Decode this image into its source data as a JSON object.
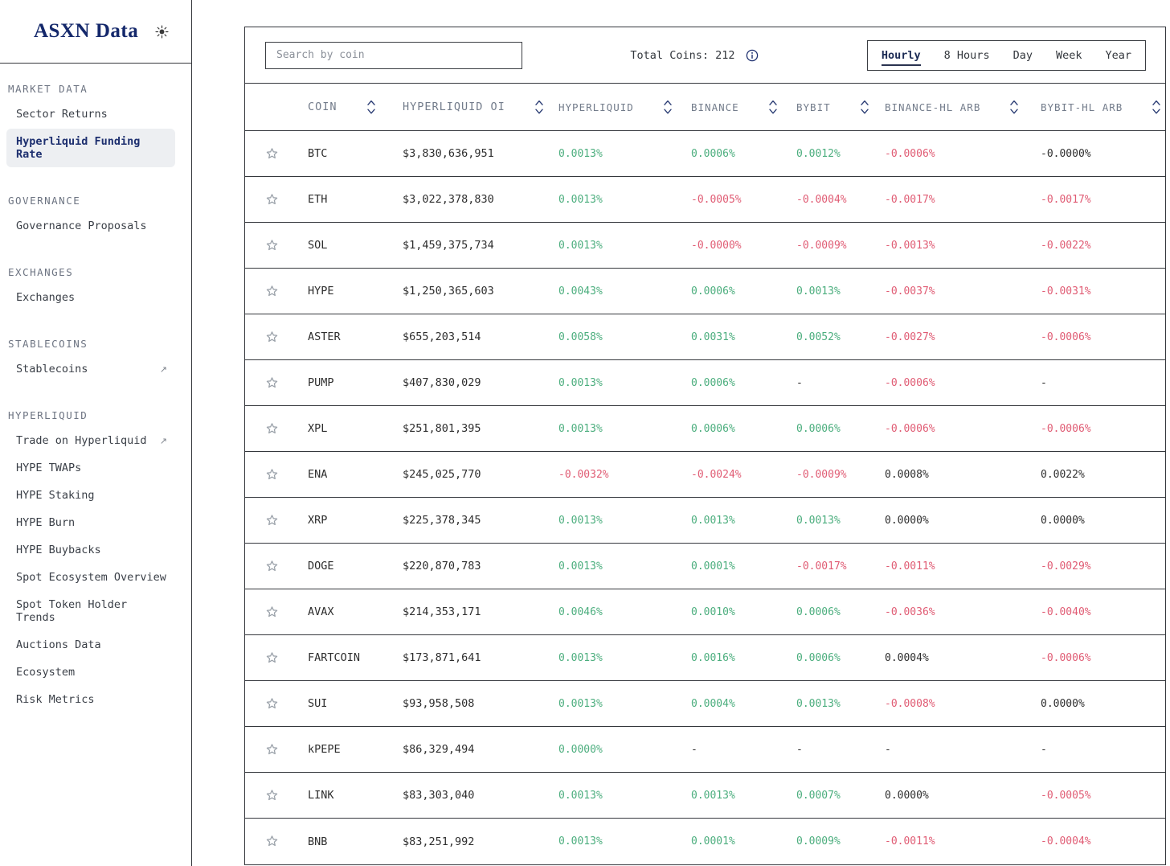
{
  "sidebar": {
    "logo": "ASXN Data",
    "sections": [
      {
        "title": "MARKET DATA",
        "items": [
          {
            "label": "Sector Returns"
          },
          {
            "label": "Hyperliquid Funding Rate",
            "active": true
          }
        ]
      },
      {
        "title": "GOVERNANCE",
        "items": [
          {
            "label": "Governance Proposals"
          }
        ]
      },
      {
        "title": "EXCHANGES",
        "items": [
          {
            "label": "Exchanges"
          }
        ]
      },
      {
        "title": "STABLECOINS",
        "items": [
          {
            "label": "Stablecoins",
            "external": true
          }
        ]
      },
      {
        "title": "HYPERLIQUID",
        "items": [
          {
            "label": "Trade on Hyperliquid",
            "external": true
          },
          {
            "label": "HYPE TWAPs"
          },
          {
            "label": "HYPE Staking"
          },
          {
            "label": "HYPE Burn"
          },
          {
            "label": "HYPE Buybacks"
          },
          {
            "label": "Spot Ecosystem Overview"
          },
          {
            "label": "Spot Token Holder Trends"
          },
          {
            "label": "Auctions Data"
          },
          {
            "label": "Ecosystem"
          },
          {
            "label": "Risk Metrics"
          }
        ]
      }
    ]
  },
  "toolbar": {
    "search_placeholder": "Search by coin",
    "total_coins_label": "Total Coins: 212",
    "periods": [
      "Hourly",
      "8 Hours",
      "Day",
      "Week",
      "Year"
    ],
    "active_period": "Hourly"
  },
  "table": {
    "columns": [
      "COIN",
      "HYPERLIQUID OI",
      "HYPERLIQUID",
      "BINANCE",
      "BYBIT",
      "BINANCE-HL ARB",
      "BYBIT-HL ARB"
    ],
    "rows": [
      {
        "coin": "BTC",
        "oi": "$3,830,636,951",
        "rates": [
          {
            "value": "0.0013%",
            "tone": "positive"
          },
          {
            "value": "0.0006%",
            "tone": "positive"
          },
          {
            "value": "0.0012%",
            "tone": "positive"
          },
          {
            "value": "-0.0006%",
            "tone": "negative"
          },
          {
            "value": "-0.0000%",
            "tone": "neutral"
          }
        ]
      },
      {
        "coin": "ETH",
        "oi": "$3,022,378,830",
        "rates": [
          {
            "value": "0.0013%",
            "tone": "positive"
          },
          {
            "value": "-0.0005%",
            "tone": "negative"
          },
          {
            "value": "-0.0004%",
            "tone": "negative"
          },
          {
            "value": "-0.0017%",
            "tone": "negative"
          },
          {
            "value": "-0.0017%",
            "tone": "negative"
          }
        ]
      },
      {
        "coin": "SOL",
        "oi": "$1,459,375,734",
        "rates": [
          {
            "value": "0.0013%",
            "tone": "positive"
          },
          {
            "value": "-0.0000%",
            "tone": "negative"
          },
          {
            "value": "-0.0009%",
            "tone": "negative"
          },
          {
            "value": "-0.0013%",
            "tone": "negative"
          },
          {
            "value": "-0.0022%",
            "tone": "negative"
          }
        ]
      },
      {
        "coin": "HYPE",
        "oi": "$1,250,365,603",
        "rates": [
          {
            "value": "0.0043%",
            "tone": "positive"
          },
          {
            "value": "0.0006%",
            "tone": "positive"
          },
          {
            "value": "0.0013%",
            "tone": "positive"
          },
          {
            "value": "-0.0037%",
            "tone": "negative"
          },
          {
            "value": "-0.0031%",
            "tone": "negative"
          }
        ]
      },
      {
        "coin": "ASTER",
        "oi": "$655,203,514",
        "rates": [
          {
            "value": "0.0058%",
            "tone": "positive"
          },
          {
            "value": "0.0031%",
            "tone": "positive"
          },
          {
            "value": "0.0052%",
            "tone": "positive"
          },
          {
            "value": "-0.0027%",
            "tone": "negative"
          },
          {
            "value": "-0.0006%",
            "tone": "negative"
          }
        ]
      },
      {
        "coin": "PUMP",
        "oi": "$407,830,029",
        "rates": [
          {
            "value": "0.0013%",
            "tone": "positive"
          },
          {
            "value": "0.0006%",
            "tone": "positive"
          },
          {
            "value": "-",
            "tone": "neutral"
          },
          {
            "value": "-0.0006%",
            "tone": "negative"
          },
          {
            "value": "-",
            "tone": "neutral"
          }
        ]
      },
      {
        "coin": "XPL",
        "oi": "$251,801,395",
        "rates": [
          {
            "value": "0.0013%",
            "tone": "positive"
          },
          {
            "value": "0.0006%",
            "tone": "positive"
          },
          {
            "value": "0.0006%",
            "tone": "positive"
          },
          {
            "value": "-0.0006%",
            "tone": "negative"
          },
          {
            "value": "-0.0006%",
            "tone": "negative"
          }
        ]
      },
      {
        "coin": "ENA",
        "oi": "$245,025,770",
        "rates": [
          {
            "value": "-0.0032%",
            "tone": "negative"
          },
          {
            "value": "-0.0024%",
            "tone": "negative"
          },
          {
            "value": "-0.0009%",
            "tone": "negative"
          },
          {
            "value": "0.0008%",
            "tone": "neutral"
          },
          {
            "value": "0.0022%",
            "tone": "neutral"
          }
        ]
      },
      {
        "coin": "XRP",
        "oi": "$225,378,345",
        "rates": [
          {
            "value": "0.0013%",
            "tone": "positive"
          },
          {
            "value": "0.0013%",
            "tone": "positive"
          },
          {
            "value": "0.0013%",
            "tone": "positive"
          },
          {
            "value": "0.0000%",
            "tone": "neutral"
          },
          {
            "value": "0.0000%",
            "tone": "neutral"
          }
        ]
      },
      {
        "coin": "DOGE",
        "oi": "$220,870,783",
        "rates": [
          {
            "value": "0.0013%",
            "tone": "positive"
          },
          {
            "value": "0.0001%",
            "tone": "positive"
          },
          {
            "value": "-0.0017%",
            "tone": "negative"
          },
          {
            "value": "-0.0011%",
            "tone": "negative"
          },
          {
            "value": "-0.0029%",
            "tone": "negative"
          }
        ]
      },
      {
        "coin": "AVAX",
        "oi": "$214,353,171",
        "rates": [
          {
            "value": "0.0046%",
            "tone": "positive"
          },
          {
            "value": "0.0010%",
            "tone": "positive"
          },
          {
            "value": "0.0006%",
            "tone": "positive"
          },
          {
            "value": "-0.0036%",
            "tone": "negative"
          },
          {
            "value": "-0.0040%",
            "tone": "negative"
          }
        ]
      },
      {
        "coin": "FARTCOIN",
        "oi": "$173,871,641",
        "rates": [
          {
            "value": "0.0013%",
            "tone": "positive"
          },
          {
            "value": "0.0016%",
            "tone": "positive"
          },
          {
            "value": "0.0006%",
            "tone": "positive"
          },
          {
            "value": "0.0004%",
            "tone": "neutral"
          },
          {
            "value": "-0.0006%",
            "tone": "negative"
          }
        ]
      },
      {
        "coin": "SUI",
        "oi": "$93,958,508",
        "rates": [
          {
            "value": "0.0013%",
            "tone": "positive"
          },
          {
            "value": "0.0004%",
            "tone": "positive"
          },
          {
            "value": "0.0013%",
            "tone": "positive"
          },
          {
            "value": "-0.0008%",
            "tone": "negative"
          },
          {
            "value": "0.0000%",
            "tone": "neutral"
          }
        ]
      },
      {
        "coin": "kPEPE",
        "oi": "$86,329,494",
        "rates": [
          {
            "value": "0.0000%",
            "tone": "positive"
          },
          {
            "value": "-",
            "tone": "neutral"
          },
          {
            "value": "-",
            "tone": "neutral"
          },
          {
            "value": "-",
            "tone": "neutral"
          },
          {
            "value": "-",
            "tone": "neutral"
          }
        ]
      },
      {
        "coin": "LINK",
        "oi": "$83,303,040",
        "rates": [
          {
            "value": "0.0013%",
            "tone": "positive"
          },
          {
            "value": "0.0013%",
            "tone": "positive"
          },
          {
            "value": "0.0007%",
            "tone": "positive"
          },
          {
            "value": "0.0000%",
            "tone": "neutral"
          },
          {
            "value": "-0.0005%",
            "tone": "negative"
          }
        ]
      },
      {
        "coin": "BNB",
        "oi": "$83,251,992",
        "rates": [
          {
            "value": "0.0013%",
            "tone": "positive"
          },
          {
            "value": "0.0001%",
            "tone": "positive"
          },
          {
            "value": "0.0009%",
            "tone": "positive"
          },
          {
            "value": "-0.0011%",
            "tone": "negative"
          },
          {
            "value": "-0.0004%",
            "tone": "negative"
          }
        ]
      }
    ]
  },
  "icons": {
    "theme_toggle": "sun-icon",
    "total_coins_info": "info-icon",
    "favorite": "star-icon",
    "sort": "sort-chevrons-icon",
    "external_link": "arrow-up-right-icon"
  },
  "colors": {
    "positive": "#4cae7e",
    "negative": "#e05c74",
    "neutral": "#2e2e2e",
    "accent_navy": "#1d2f6f",
    "border": "#35383d",
    "active_item_bg": "#edeff2"
  }
}
